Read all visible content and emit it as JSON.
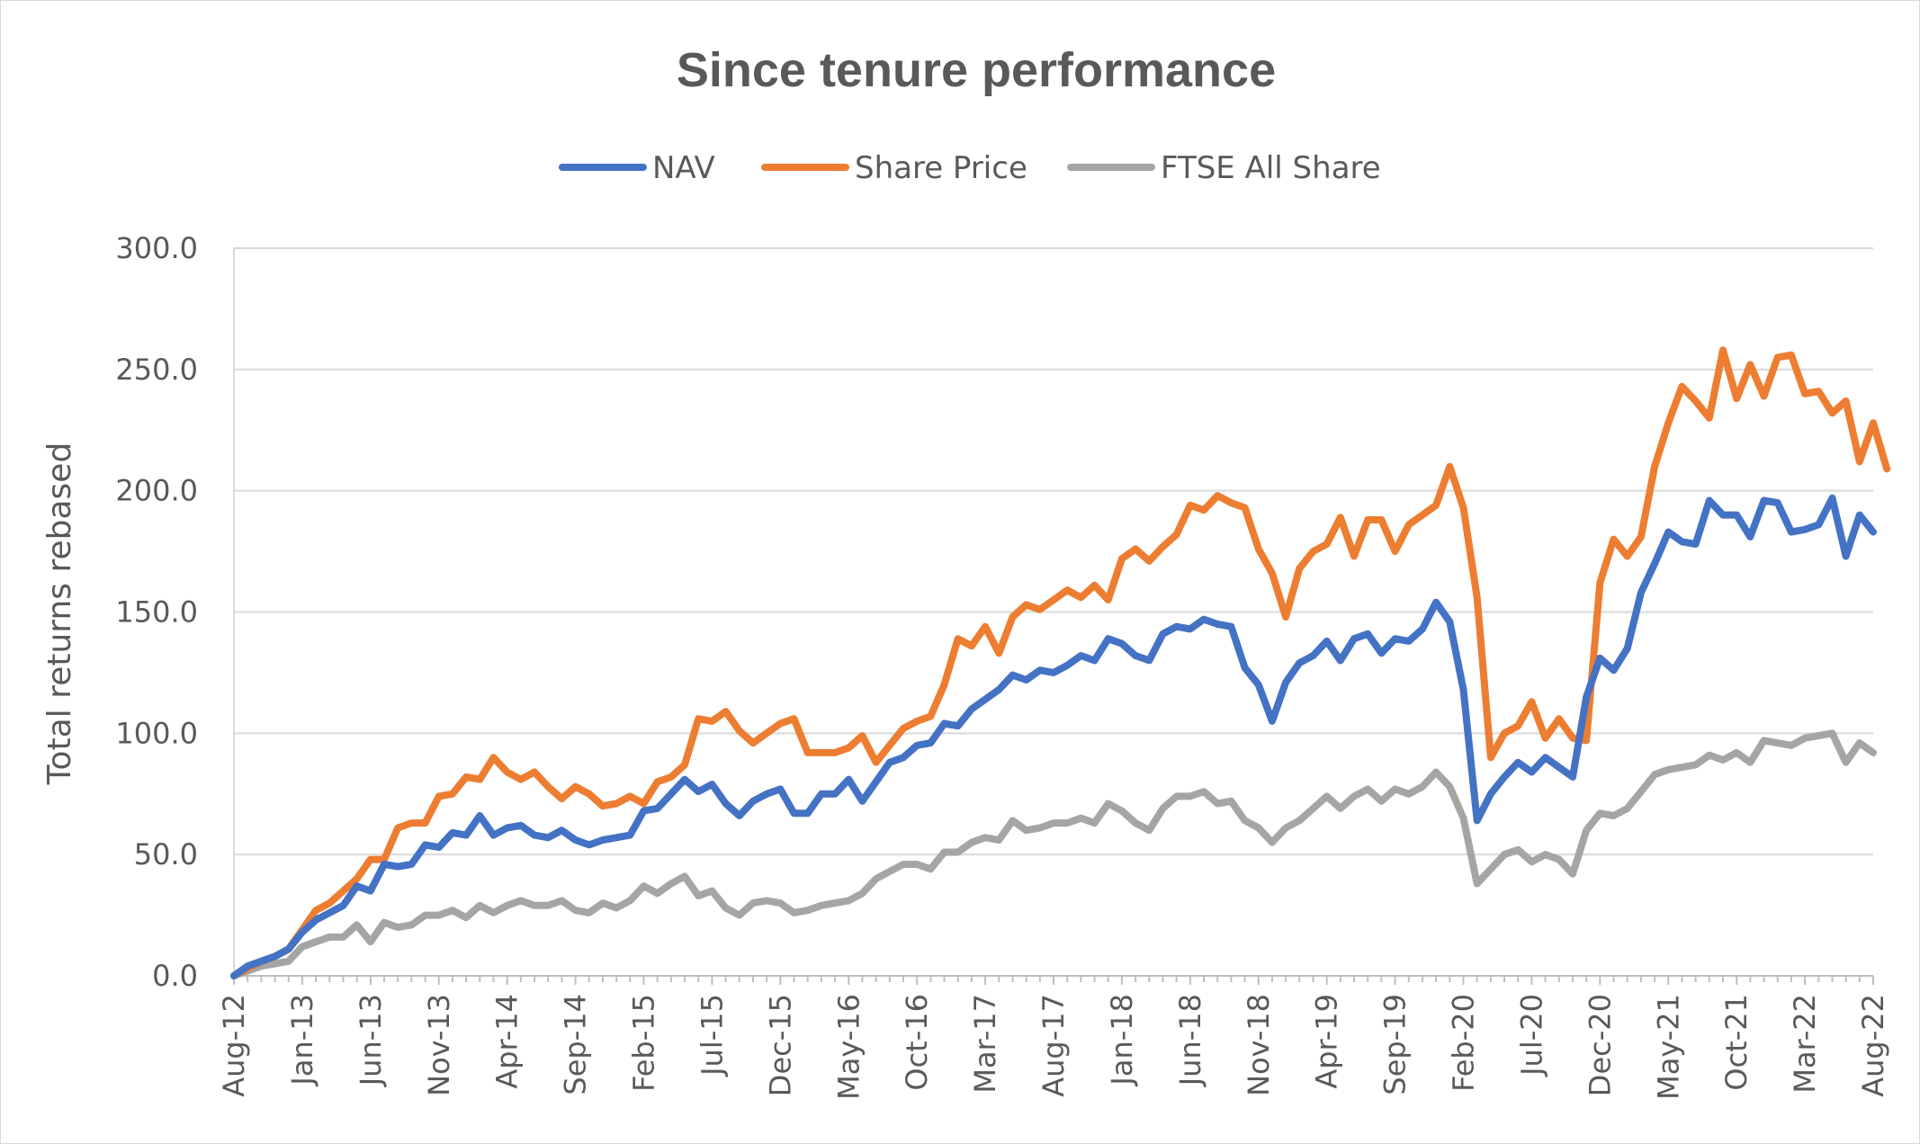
{
  "chart_data": {
    "type": "line",
    "title": "Since tenure performance",
    "ylabel": "Total returns rebased",
    "xlabel": "",
    "ylim": [
      0,
      300
    ],
    "y_ticks": [
      "0.0",
      "50.0",
      "100.0",
      "150.0",
      "200.0",
      "250.0",
      "300.0"
    ],
    "x_tick_labels": [
      "Aug-12",
      "Jan-13",
      "Jun-13",
      "Nov-13",
      "Apr-14",
      "Sep-14",
      "Feb-15",
      "Jul-15",
      "Dec-15",
      "May-16",
      "Oct-16",
      "Mar-17",
      "Aug-17",
      "Jan-18",
      "Jun-18",
      "Nov-18",
      "Apr-19",
      "Sep-19",
      "Feb-20",
      "Jul-20",
      "Dec-20",
      "May-21",
      "Oct-21",
      "Mar-22",
      "Aug-22"
    ],
    "x_start": "Aug-12",
    "x_end": "Aug-22",
    "grid": true,
    "legend_position": "top",
    "series": [
      {
        "name": "NAV",
        "color": "#4472c4",
        "values": [
          0,
          4,
          6,
          8,
          11,
          18,
          23,
          26,
          29,
          37,
          35,
          46,
          45,
          46,
          54,
          53,
          59,
          58,
          66,
          58,
          61,
          62,
          58,
          57,
          60,
          56,
          54,
          56,
          57,
          58,
          68,
          69,
          75,
          81,
          76,
          79,
          71,
          66,
          72,
          75,
          77,
          67,
          67,
          75,
          75,
          81,
          72,
          80,
          88,
          90,
          95,
          96,
          104,
          103,
          110,
          114,
          118,
          124,
          122,
          126,
          125,
          128,
          132,
          130,
          139,
          137,
          132,
          130,
          141,
          144,
          143,
          147,
          145,
          144,
          127,
          120,
          105,
          121,
          129,
          132,
          138,
          130,
          139,
          141,
          133,
          139,
          138,
          143,
          154,
          146,
          118,
          64,
          75,
          82,
          88,
          84,
          90,
          86,
          82,
          115,
          131,
          126,
          135,
          158,
          170,
          183,
          179,
          178,
          196,
          190,
          190,
          181,
          196,
          195,
          183,
          184,
          186,
          197,
          173,
          190,
          183
        ]
      },
      {
        "name": "Share Price",
        "color": "#ed7d31",
        "values": [
          0,
          3,
          6,
          8,
          11,
          19,
          27,
          30,
          35,
          40,
          48,
          48,
          61,
          63,
          63,
          74,
          75,
          82,
          81,
          90,
          84,
          81,
          84,
          78,
          73,
          78,
          75,
          70,
          71,
          74,
          71,
          80,
          82,
          87,
          106,
          105,
          109,
          101,
          96,
          100,
          104,
          106,
          92,
          92,
          92,
          94,
          99,
          88,
          95,
          102,
          105,
          107,
          120,
          139,
          136,
          144,
          133,
          148,
          153,
          151,
          155,
          159,
          156,
          161,
          155,
          172,
          176,
          171,
          177,
          182,
          194,
          192,
          198,
          195,
          193,
          176,
          166,
          148,
          168,
          175,
          178,
          189,
          173,
          188,
          188,
          175,
          186,
          190,
          194,
          210,
          193,
          156,
          90,
          100,
          103,
          113,
          98,
          106,
          98,
          97,
          162,
          180,
          173,
          181,
          210,
          228,
          243,
          237,
          230,
          258,
          238,
          252,
          239,
          255,
          256,
          240,
          241,
          232,
          237,
          212,
          228,
          209
        ]
      },
      {
        "name": "FTSE All Share",
        "color": "#a5a5a5",
        "values": [
          0,
          2,
          4,
          5,
          6,
          12,
          14,
          16,
          16,
          21,
          14,
          22,
          20,
          21,
          25,
          25,
          27,
          24,
          29,
          26,
          29,
          31,
          29,
          29,
          31,
          27,
          26,
          30,
          28,
          31,
          37,
          34,
          38,
          41,
          33,
          35,
          28,
          25,
          30,
          31,
          30,
          26,
          27,
          29,
          30,
          31,
          34,
          40,
          43,
          46,
          46,
          44,
          51,
          51,
          55,
          57,
          56,
          64,
          60,
          61,
          63,
          63,
          65,
          63,
          71,
          68,
          63,
          60,
          69,
          74,
          74,
          76,
          71,
          72,
          64,
          61,
          55,
          61,
          64,
          69,
          74,
          69,
          74,
          77,
          72,
          77,
          75,
          78,
          84,
          78,
          65,
          38,
          44,
          50,
          52,
          47,
          50,
          48,
          42,
          60,
          67,
          66,
          69,
          76,
          83,
          85,
          86,
          87,
          91,
          89,
          92,
          88,
          97,
          96,
          95,
          98,
          99,
          100,
          88,
          96,
          92
        ]
      }
    ]
  }
}
